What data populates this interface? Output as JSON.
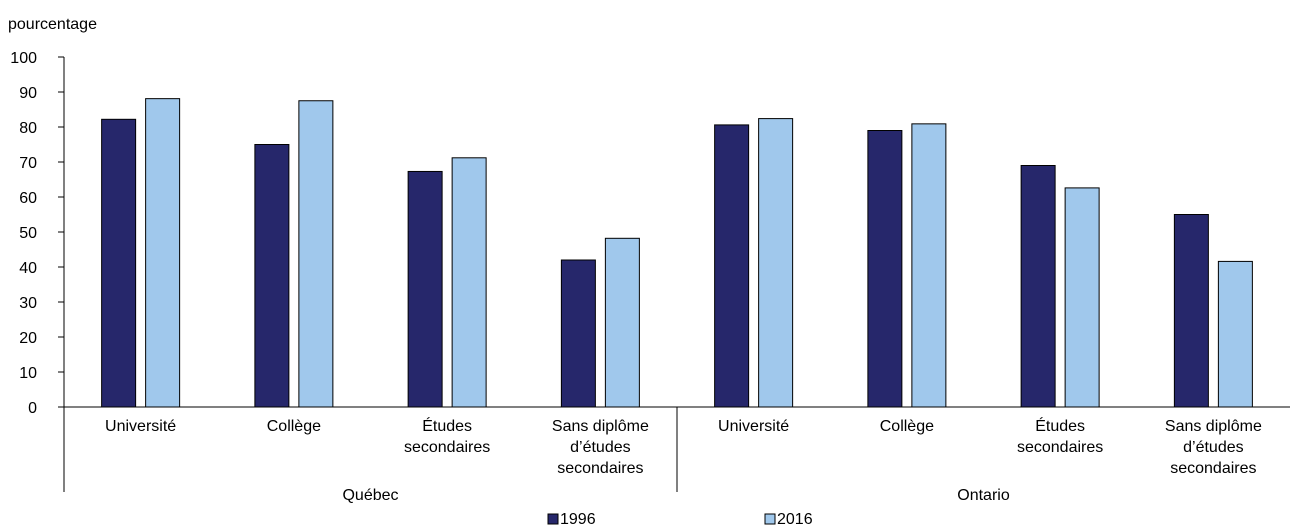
{
  "chart_data": {
    "type": "bar",
    "ylabel": "pourcentage",
    "ylim": [
      0,
      100
    ],
    "yticks": [
      "0",
      "10",
      "20",
      "30",
      "40",
      "50",
      "60",
      "70",
      "80",
      "90",
      "100"
    ],
    "groups": [
      "Québec",
      "Ontario"
    ],
    "categories": [
      [
        "Université"
      ],
      [
        "Collège"
      ],
      [
        "Études",
        "secondaires"
      ],
      [
        "Sans diplôme",
        "d’études",
        "secondaires"
      ],
      [
        "Université"
      ],
      [
        "Collège"
      ],
      [
        "Études",
        "secondaires"
      ],
      [
        "Sans diplôme",
        "d’études",
        "secondaires"
      ]
    ],
    "series": [
      {
        "name": "1996",
        "color": "#26276b",
        "values": [
          82.2,
          75,
          67.3,
          42,
          80.6,
          79,
          69,
          55
        ]
      },
      {
        "name": "2016",
        "color": "#a0c8ec",
        "values": [
          88.1,
          87.5,
          71.2,
          48.2,
          82.4,
          80.9,
          62.6,
          41.6
        ]
      }
    ],
    "grid": false,
    "legend_position": "bottom"
  }
}
